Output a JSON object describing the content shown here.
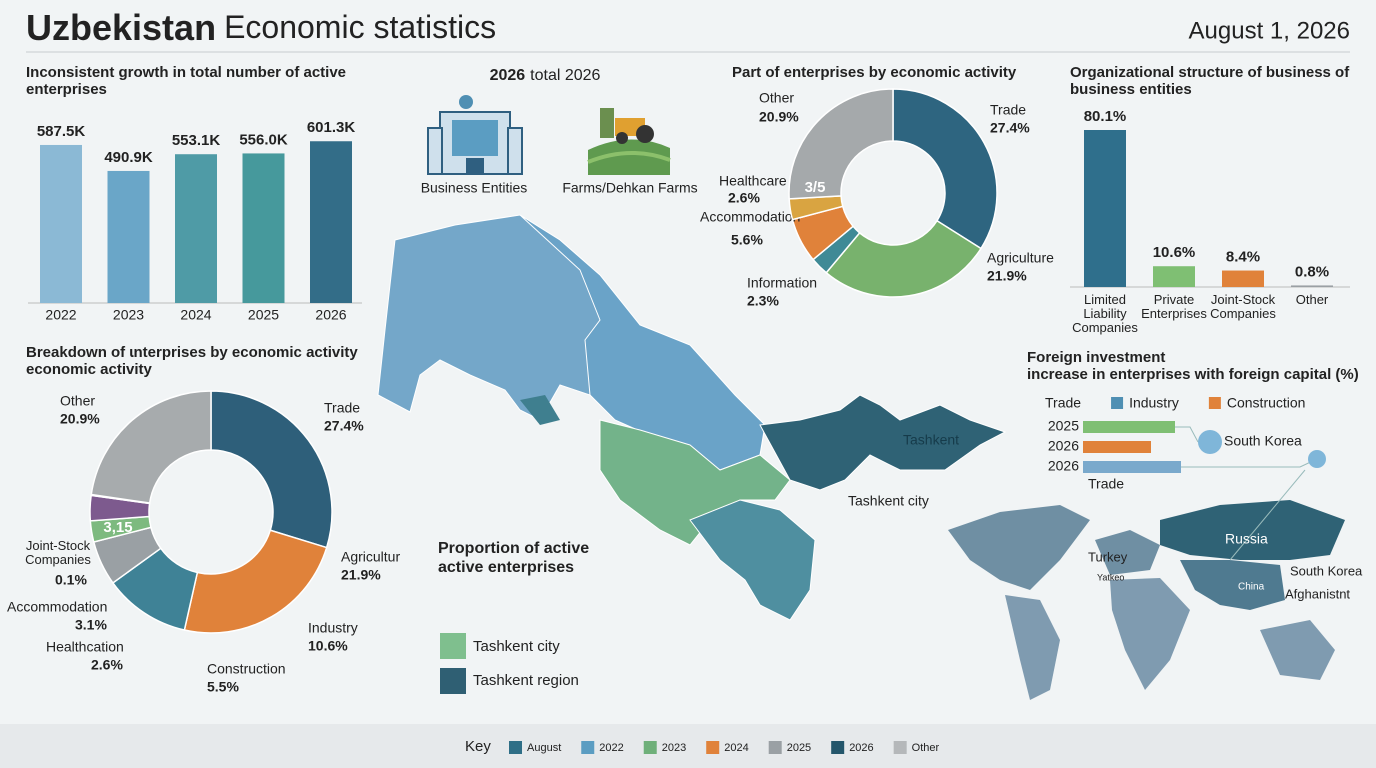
{
  "header": {
    "title_bold": "Uzbekistan",
    "title": "Economic statistics",
    "date": "August 1, 2026"
  },
  "summary": {
    "title_bold": "2026",
    "title": "total 2026",
    "items": [
      "Business Entities",
      "Farms/Dehkan Farms"
    ]
  },
  "chart_data": [
    {
      "type": "bar",
      "title": [
        "Inconsistent growth in total number of active",
        "enterprises"
      ],
      "categories": [
        "2022",
        "2023",
        "2024",
        "2025",
        "2026"
      ],
      "values": [
        587.5,
        490.9,
        553.1,
        556.0,
        601.3
      ],
      "value_labels": [
        "587.5K",
        "490.9K",
        "553.1K",
        "556.0K",
        "601.3K"
      ],
      "colors": [
        "#8bb9d5",
        "#6aa6c8",
        "#4f9ba6",
        "#46999c",
        "#336d88"
      ]
    },
    {
      "type": "donut",
      "title": [
        "Part of enterprises by economic activity"
      ],
      "categories": [
        "Trade",
        "Agriculture",
        "Information",
        "Accommodation",
        "Healthcare",
        "Other"
      ],
      "values": [
        27.4,
        21.9,
        2.3,
        5.6,
        2.6,
        20.9
      ],
      "value_labels": [
        "27.4%",
        "21.9%",
        "2.3%",
        "5.6%",
        "2.6%",
        "20.9%"
      ],
      "colors": [
        "#2e6580",
        "#78b26d",
        "#3f8a96",
        "#e0823a",
        "#d9a441",
        "#a5a9ab"
      ],
      "annotation": "3/5"
    },
    {
      "type": "bar",
      "title": [
        "Organizational structure of business of",
        "business entities"
      ],
      "categories": [
        "Limited Liability Companies",
        "Private Enterprises",
        "Joint-Stock Companies",
        "Other"
      ],
      "values": [
        80.1,
        10.6,
        8.4,
        0.8
      ],
      "value_labels": [
        "80.1%",
        "10.6%",
        "8.4%",
        "0.8%"
      ],
      "colors": [
        "#2f6f8c",
        "#7fbf73",
        "#e0823a",
        "#9aa0a4"
      ]
    },
    {
      "type": "donut",
      "title": [
        "Breakdown of ɩnterprises by economic activity",
        "economic activity"
      ],
      "categories": [
        "Trade",
        "Agricultur",
        "Industry",
        "Construction",
        "Healthcation",
        "Accommodation",
        "Joint-Stock Companies",
        "Other"
      ],
      "values": [
        27.4,
        21.9,
        10.6,
        5.5,
        2.6,
        3.1,
        0.1,
        20.9
      ],
      "value_labels": [
        "27.4%",
        "21.9%",
        "10.6%",
        "5.5%",
        "2.6%",
        "3.1%",
        "0.1%",
        "20.9%"
      ],
      "colors": [
        "#2e5f7a",
        "#e0823a",
        "#3f8296",
        "#9aa0a4",
        "#7dba7f",
        "#7d5a8e",
        "#3f8c92",
        "#a7abad"
      ],
      "annotation": "3,15"
    },
    {
      "type": "bar",
      "orientation": "horizontal",
      "title": [
        "Foreign investment",
        "increase in enterprises with foreign capital (%)"
      ],
      "legend": [
        {
          "name": "Trade"
        },
        {
          "name": "Industry",
          "color": "#4f8fb3"
        },
        {
          "name": "Construction",
          "color": "#e0823a"
        }
      ],
      "categories": [
        "2025",
        "2026",
        "2026"
      ],
      "values": [
        92,
        68,
        98
      ],
      "colors": [
        "#7fbf73",
        "#e0823a",
        "#7aa9cc"
      ],
      "annotations": [
        "Trade",
        "South Korea"
      ]
    }
  ],
  "map": {
    "labels": [
      "Tashkent",
      "Tashkent city"
    ],
    "title": [
      "Proportion of active",
      "active enterprises"
    ],
    "legend": [
      {
        "name": "Tashkent city",
        "color": "#7fbf8e"
      },
      {
        "name": "Tashkent region",
        "color": "#2f5f73"
      }
    ]
  },
  "world": {
    "labels": [
      "Russia",
      "Turkey",
      "Yatkeo",
      "China",
      "South Korea",
      "Afghanistnt"
    ]
  },
  "key": {
    "title": "Key",
    "items": [
      {
        "name": "August",
        "color": "#2f6f87"
      },
      {
        "name": "2022",
        "color": "#5b9dc2"
      },
      {
        "name": "2023",
        "color": "#6fb07a"
      },
      {
        "name": "2024",
        "color": "#e0823a"
      },
      {
        "name": "2025",
        "color": "#9aa0a4"
      },
      {
        "name": "2026",
        "color": "#24566b"
      },
      {
        "name": "Other",
        "color": "#b5b8ba"
      }
    ]
  }
}
